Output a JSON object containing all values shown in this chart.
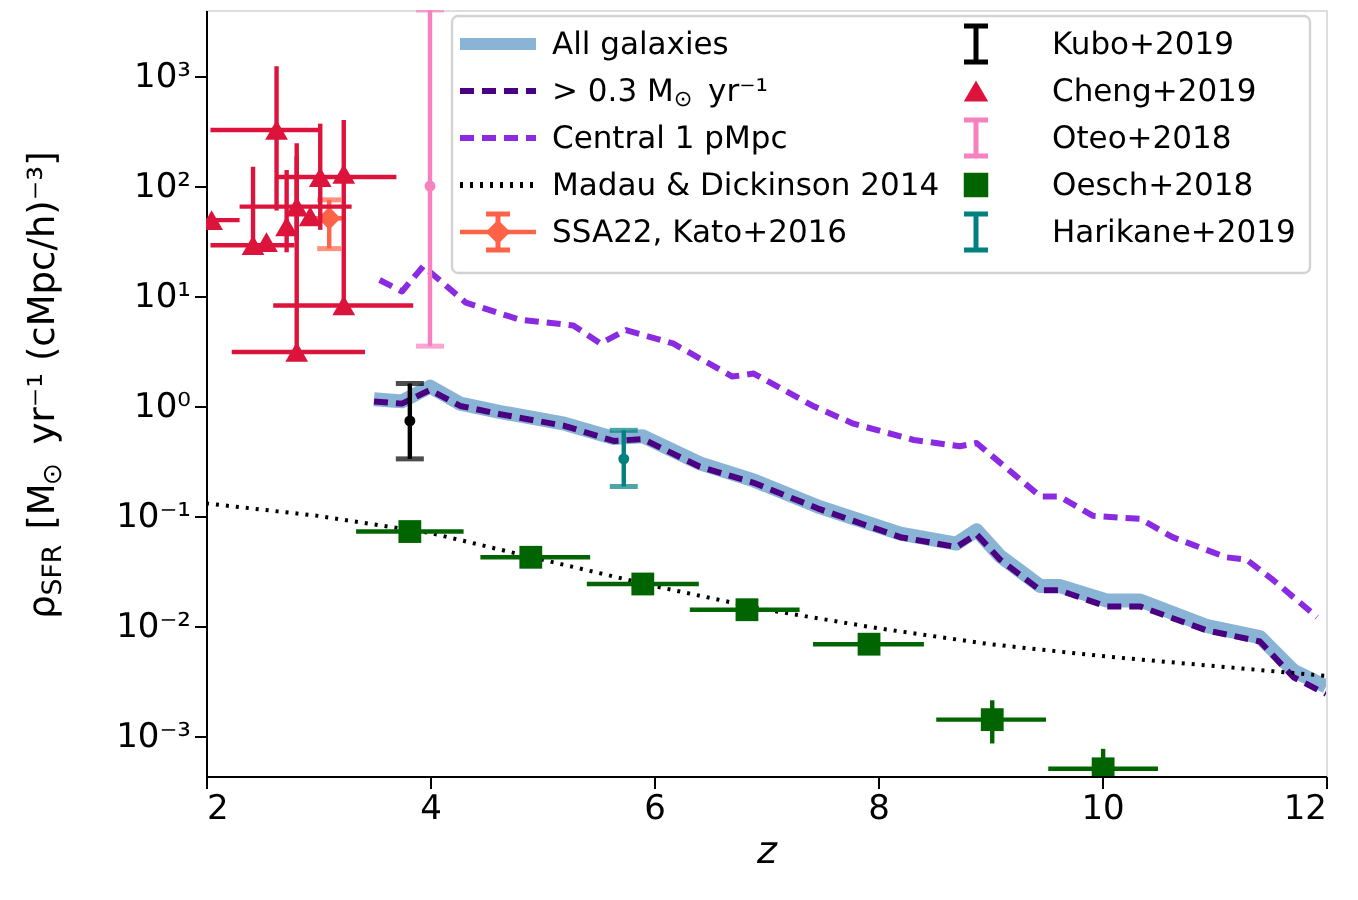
{
  "chart_data": {
    "type": "line",
    "xlabel": "z",
    "ylabel": "ρ$_{SFR}$ [M$_{⊙}$ yr⁻¹ (cMpc/h)⁻³]",
    "xlim": [
      2,
      12
    ],
    "xticks": [
      2,
      4,
      6,
      8,
      10,
      12
    ],
    "ylim": [
      0.00043,
      4000
    ],
    "log": true,
    "yticks": [
      {
        "value": 0.001,
        "label": "10⁻³"
      },
      {
        "value": 0.01,
        "label": "10⁻²"
      },
      {
        "value": 0.1,
        "label": "10⁻¹"
      },
      {
        "value": 1,
        "label": "10⁰"
      },
      {
        "value": 10,
        "label": "10¹"
      },
      {
        "value": 100,
        "label": "10²"
      },
      {
        "value": 1000,
        "label": "10³"
      }
    ],
    "grid": false,
    "legend": "top right",
    "series": [
      {
        "name": "All galaxies",
        "color": "#8ab4d6",
        "line_style": "solid",
        "x": [
          3.5,
          3.75,
          4.0,
          4.27,
          4.63,
          5.2,
          5.64,
          5.9,
          6.41,
          6.89,
          7.48,
          8.2,
          8.7,
          8.88,
          9.09,
          9.45,
          9.62,
          10.04,
          10.34,
          10.93,
          11.41,
          11.71,
          12.0
        ],
        "values": [
          1.15,
          1.1,
          1.5,
          1.05,
          0.88,
          0.69,
          0.51,
          0.53,
          0.3,
          0.21,
          0.12,
          0.069,
          0.056,
          0.074,
          0.043,
          0.023,
          0.023,
          0.017,
          0.017,
          0.01,
          0.0079,
          0.0039,
          0.0028
        ]
      },
      {
        "name": "> 0.3 M$_{⊙}$ yr⁻¹",
        "color": "#4b0082",
        "line_style": "dashed",
        "x": [
          3.5,
          3.75,
          4.0,
          4.27,
          4.63,
          5.2,
          5.64,
          5.9,
          6.41,
          6.89,
          7.48,
          8.2,
          8.7,
          8.88,
          9.09,
          9.45,
          9.62,
          10.04,
          10.34,
          10.93,
          11.41,
          11.71,
          12.0
        ],
        "values": [
          1.1,
          1.05,
          1.4,
          1.0,
          0.84,
          0.66,
          0.48,
          0.5,
          0.28,
          0.2,
          0.115,
          0.064,
          0.052,
          0.068,
          0.04,
          0.021,
          0.021,
          0.015,
          0.015,
          0.0091,
          0.0072,
          0.0034,
          0.0024
        ]
      },
      {
        "name": "Central 1 pMpc",
        "color": "#8a2be2",
        "line_style": "dashed",
        "x": [
          3.55,
          3.75,
          3.94,
          4.32,
          4.8,
          5.28,
          5.52,
          5.75,
          6.17,
          6.7,
          6.89,
          7.42,
          7.78,
          8.32,
          8.73,
          8.88,
          9.45,
          9.62,
          9.92,
          10.34,
          10.63,
          11.11,
          11.29,
          11.53,
          11.92
        ],
        "values": [
          14,
          11,
          18.7,
          8.7,
          6.1,
          5.4,
          3.7,
          4.9,
          3.7,
          1.85,
          1.97,
          1.0,
          0.69,
          0.49,
          0.43,
          0.46,
          0.15,
          0.15,
          0.1,
          0.094,
          0.064,
          0.042,
          0.04,
          0.026,
          0.012
        ]
      },
      {
        "name": "Madau & Dickinson 2014",
        "color": "#000000",
        "line_style": "dotted",
        "x": [
          2,
          3,
          4,
          5,
          6,
          7,
          8,
          9,
          10,
          11,
          12
        ],
        "values": [
          0.13,
          0.1,
          0.07,
          0.04,
          0.023,
          0.014,
          0.0095,
          0.0068,
          0.0053,
          0.0043,
          0.0035
        ]
      },
      {
        "name": "SSA22, Kato+2016",
        "type": "scatter",
        "color": "#ff6347",
        "marker": "diamond",
        "x": [
          3.1
        ],
        "values": [
          51
        ],
        "errors": [
          [
            27,
            75
          ]
        ],
        "xerrors": [
          [
            2.96,
            3.25
          ]
        ]
      },
      {
        "name": "Kubo+2019",
        "type": "scatter",
        "color": "#000000",
        "x": [
          3.82
        ],
        "values": [
          0.73
        ],
        "errors": [
          [
            0.33,
            1.6
          ]
        ]
      },
      {
        "name": "Cheng+2019",
        "type": "scatter",
        "color": "#dc143c",
        "marker": "triangle",
        "x": [
          2.63,
          3.02,
          3.23,
          2.05,
          2.81,
          2.93,
          2.72,
          2.42,
          2.54,
          3.23,
          2.81
        ],
        "values": [
          324,
          121,
          129,
          49,
          65,
          53,
          43,
          29,
          31,
          8.2,
          3.1
        ],
        "errors": [
          [
            60,
            1230
          ],
          [
            40,
            370
          ],
          [
            8,
            400
          ],
          null,
          [
            32,
            186
          ],
          null,
          [
            25,
            140
          ],
          [
            27,
            150
          ],
          null,
          null,
          [
            3.0,
            245
          ]
        ],
        "xerrors": [
          [
            2.04,
            3.02
          ],
          [
            2.63,
            3.7
          ],
          null,
          [
            2.0,
            2.3
          ],
          [
            2.3,
            3.3
          ],
          null,
          null,
          [
            2.04,
            2.79
          ],
          null,
          [
            2.6,
            3.85
          ],
          [
            2.23,
            3.42
          ]
        ]
      },
      {
        "name": "Oteo+2018",
        "type": "scatter",
        "color": "#f781bf",
        "x": [
          4.0
        ],
        "values": [
          100
        ],
        "errors": [
          [
            3.5,
            4000
          ]
        ]
      },
      {
        "name": "Oesch+2018",
        "type": "scatter",
        "color": "#006400",
        "marker": "square",
        "x": [
          3.82,
          4.9,
          5.9,
          6.83,
          7.92,
          9.02,
          10.01
        ],
        "values": [
          0.072,
          0.042,
          0.024,
          0.014,
          0.0068,
          0.0014,
          0.0005
        ],
        "errors": [
          [
            0.06,
            0.085
          ],
          [
            0.036,
            0.049
          ],
          [
            0.02,
            0.029
          ],
          [
            0.012,
            0.016
          ],
          [
            0.006,
            0.0078
          ],
          [
            0.00085,
            0.0021
          ],
          [
            0.00048,
            0.00076
          ]
        ],
        "xerrors": [
          [
            3.34,
            4.3
          ],
          [
            4.45,
            5.43
          ],
          [
            5.4,
            6.4
          ],
          [
            6.32,
            7.3
          ],
          [
            7.42,
            8.41
          ],
          [
            8.52,
            9.5
          ],
          [
            9.52,
            10.5
          ]
        ]
      },
      {
        "name": "Harikane+2019",
        "type": "scatter",
        "color": "#008080",
        "x": [
          5.73
        ],
        "values": [
          0.33
        ],
        "errors": [
          [
            0.185,
            0.6
          ]
        ]
      }
    ]
  }
}
